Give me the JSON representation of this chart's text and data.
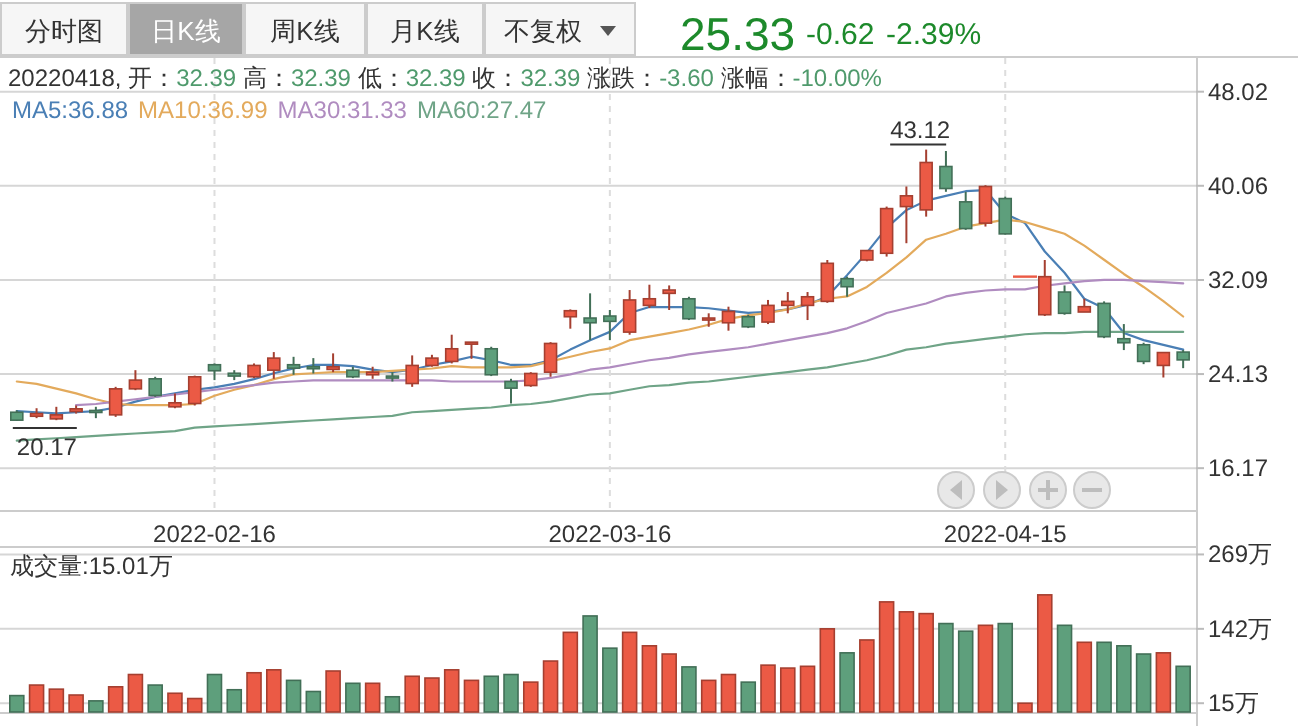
{
  "chart_data": [
    {
      "type": "candlestick",
      "categories": [
        null,
        null,
        null,
        null,
        null,
        null,
        null,
        null,
        null,
        null,
        "2022-02-16",
        null,
        null,
        null,
        null,
        null,
        null,
        null,
        null,
        null,
        null,
        null,
        null,
        null,
        null,
        null,
        null,
        null,
        null,
        null,
        "2022-03-16",
        null,
        null,
        null,
        null,
        null,
        null,
        null,
        null,
        null,
        null,
        null,
        null,
        null,
        null,
        null,
        null,
        null,
        null,
        null,
        "2022-04-15",
        null,
        null,
        null,
        null,
        null,
        null,
        null,
        null,
        null
      ],
      "ohlc": [
        [
          20.9,
          21.07,
          20.17,
          20.23
        ],
        [
          20.56,
          21.24,
          20.4,
          20.79
        ],
        [
          20.34,
          21.36,
          20.23,
          20.68
        ],
        [
          20.96,
          21.47,
          20.79,
          21.19
        ],
        [
          21.05,
          21.36,
          20.4,
          21.0
        ],
        [
          20.68,
          23.05,
          20.51,
          22.88
        ],
        [
          22.88,
          24.46,
          22.77,
          23.62
        ],
        [
          23.73,
          23.9,
          22.2,
          22.32
        ],
        [
          21.36,
          22.49,
          21.24,
          21.7
        ],
        [
          21.64,
          24.0,
          21.47,
          23.9
        ],
        [
          24.92,
          25.03,
          23.62,
          24.41
        ],
        [
          24.2,
          24.46,
          23.62,
          23.96
        ],
        [
          23.9,
          25.03,
          23.79,
          24.86
        ],
        [
          24.46,
          25.99,
          23.73,
          25.48
        ],
        [
          24.92,
          25.59,
          24.07,
          24.63
        ],
        [
          24.75,
          25.48,
          24.18,
          24.63
        ],
        [
          24.52,
          25.88,
          24.29,
          24.75
        ],
        [
          24.46,
          24.75,
          23.79,
          23.9
        ],
        [
          24.07,
          24.75,
          23.73,
          24.29
        ],
        [
          23.96,
          24.29,
          23.5,
          23.84
        ],
        [
          23.33,
          25.71,
          23.05,
          24.86
        ],
        [
          24.86,
          25.76,
          24.75,
          25.48
        ],
        [
          25.2,
          27.46,
          25.03,
          26.27
        ],
        [
          26.72,
          26.83,
          25.42,
          26.83
        ],
        [
          26.27,
          26.44,
          23.96,
          24.07
        ],
        [
          23.5,
          23.73,
          21.64,
          22.94
        ],
        [
          23.16,
          24.29,
          23.05,
          24.18
        ],
        [
          24.29,
          26.83,
          23.9,
          26.72
        ],
        [
          28.98,
          29.6,
          27.97,
          29.49
        ],
        [
          28.87,
          30.96,
          27.0,
          28.47
        ],
        [
          29.04,
          29.55,
          27.0,
          28.59
        ],
        [
          27.68,
          31.24,
          27.46,
          30.4
        ],
        [
          29.94,
          31.69,
          29.72,
          30.5
        ],
        [
          30.96,
          31.63,
          29.55,
          31.24
        ],
        [
          30.5,
          30.67,
          28.7,
          28.81
        ],
        [
          28.7,
          29.27,
          28.13,
          28.87
        ],
        [
          28.47,
          29.83,
          27.8,
          29.43
        ],
        [
          28.98,
          29.15,
          28.02,
          28.13
        ],
        [
          28.53,
          30.4,
          28.36,
          29.94
        ],
        [
          29.94,
          31.07,
          29.27,
          30.28
        ],
        [
          29.94,
          31.07,
          28.7,
          30.67
        ],
        [
          30.28,
          33.78,
          30.16,
          33.5
        ],
        [
          32.2,
          32.37,
          30.67,
          31.52
        ],
        [
          33.78,
          34.63,
          33.67,
          34.58
        ],
        [
          34.35,
          38.3,
          34.07,
          38.13
        ],
        [
          38.3,
          40.0,
          35.2,
          39.21
        ],
        [
          38.02,
          43.12,
          37.45,
          42.03
        ],
        [
          41.69,
          43.0,
          39.55,
          39.83
        ],
        [
          38.7,
          39.55,
          36.33,
          36.44
        ],
        [
          36.9,
          40.11,
          36.61,
          40.0
        ],
        [
          38.98,
          39.15,
          35.93,
          35.99
        ],
        [
          32.39,
          32.39,
          32.39,
          32.39
        ],
        [
          29.15,
          33.78,
          29.04,
          32.37
        ],
        [
          31.07,
          31.63,
          29.15,
          29.27
        ],
        [
          29.38,
          30.5,
          29.38,
          29.83
        ],
        [
          30.11,
          30.28,
          27.17,
          27.29
        ],
        [
          27.12,
          28.36,
          26.16,
          26.78
        ],
        [
          26.61,
          26.78,
          24.97,
          25.2
        ],
        [
          24.86,
          25.99,
          23.84,
          25.95
        ],
        [
          25.99,
          26.16,
          24.63,
          25.33
        ]
      ],
      "colors": [
        "#5e9f7c",
        "#eb5a45",
        "#eb5a45",
        "#eb5a45",
        "#5e9f7c",
        "#eb5a45",
        "#eb5a45",
        "#5e9f7c",
        "#eb5a45",
        "#eb5a45",
        "#5e9f7c",
        "#5e9f7c",
        "#eb5a45",
        "#eb5a45",
        "#5e9f7c",
        "#5e9f7c",
        "#eb5a45",
        "#5e9f7c",
        "#eb5a45",
        "#5e9f7c",
        "#eb5a45",
        "#eb5a45",
        "#eb5a45",
        "#eb5a45",
        "#5e9f7c",
        "#5e9f7c",
        "#eb5a45",
        "#eb5a45",
        "#eb5a45",
        "#5e9f7c",
        "#5e9f7c",
        "#eb5a45",
        "#eb5a45",
        "#eb5a45",
        "#5e9f7c",
        "#eb5a45",
        "#eb5a45",
        "#5e9f7c",
        "#eb5a45",
        "#eb5a45",
        "#eb5a45",
        "#eb5a45",
        "#5e9f7c",
        "#eb5a45",
        "#eb5a45",
        "#eb5a45",
        "#eb5a45",
        "#5e9f7c",
        "#5e9f7c",
        "#eb5a45",
        "#5e9f7c",
        "#eb5a45",
        "#eb5a45",
        "#5e9f7c",
        "#eb5a45",
        "#5e9f7c",
        "#5e9f7c",
        "#5e9f7c",
        "#eb5a45",
        "#5e9f7c"
      ],
      "series": [
        {
          "type": "line",
          "name": "MA5:36.88",
          "color": "#4a7fb5",
          "values": [
            21.0,
            20.9,
            20.8,
            20.9,
            21.0,
            21.3,
            21.8,
            22.2,
            22.5,
            22.8,
            23.0,
            23.3,
            23.7,
            24.2,
            24.6,
            24.9,
            24.9,
            24.8,
            24.5,
            24.3,
            24.5,
            24.9,
            25.2,
            25.6,
            25.3,
            24.9,
            24.9,
            25.3,
            26.2,
            27.0,
            27.7,
            29.3,
            29.8,
            29.8,
            29.8,
            29.7,
            29.5,
            29.3,
            29.4,
            29.6,
            30.0,
            30.7,
            32.5,
            34.4,
            36.5,
            38.0,
            38.8,
            39.2,
            39.6,
            39.7,
            37.7,
            36.9,
            34.5,
            32.7,
            30.5,
            29.7,
            27.6,
            27.0,
            26.6,
            26.2
          ]
        },
        {
          "type": "line",
          "name": "MA10:36.99",
          "color": "#e3aa5c",
          "values": [
            23.5,
            23.3,
            22.9,
            22.5,
            22.0,
            21.6,
            21.5,
            21.5,
            21.5,
            21.6,
            22.3,
            22.8,
            23.2,
            23.7,
            24.1,
            24.2,
            24.3,
            24.3,
            24.3,
            24.4,
            24.5,
            24.6,
            24.8,
            24.7,
            24.7,
            24.7,
            24.8,
            25.2,
            25.6,
            26.0,
            26.3,
            27.0,
            27.3,
            27.6,
            27.9,
            28.3,
            28.8,
            29.1,
            29.3,
            29.6,
            30.1,
            30.5,
            30.7,
            31.5,
            32.7,
            34.0,
            35.5,
            36.0,
            36.6,
            36.9,
            37.2,
            37.0,
            36.5,
            36.0,
            35.0,
            33.8,
            32.6,
            31.5,
            30.3,
            29.0
          ]
        },
        {
          "type": "line",
          "name": "MA30:31.33",
          "color": "#b08cc0",
          "values": [
            null,
            null,
            null,
            21.5,
            21.6,
            21.8,
            22.0,
            22.2,
            22.4,
            22.6,
            22.8,
            23.0,
            23.2,
            23.4,
            23.5,
            23.6,
            23.6,
            23.6,
            23.6,
            23.6,
            23.6,
            23.6,
            23.5,
            23.5,
            23.5,
            23.5,
            23.6,
            23.8,
            24.1,
            24.5,
            24.7,
            25.0,
            25.3,
            25.5,
            25.8,
            26.0,
            26.2,
            26.4,
            26.7,
            27.0,
            27.3,
            27.6,
            28.0,
            28.6,
            29.3,
            29.7,
            30.1,
            30.7,
            31.0,
            31.2,
            31.3,
            31.3,
            31.6,
            31.8,
            32.0,
            32.1,
            32.1,
            32.0,
            31.9,
            31.8
          ]
        },
        {
          "type": "line",
          "name": "MA60:27.47",
          "color": "#6fa487",
          "values": [
            18.5,
            18.6,
            18.7,
            18.8,
            18.9,
            19.0,
            19.1,
            19.2,
            19.3,
            19.6,
            19.7,
            19.8,
            19.9,
            20.0,
            20.1,
            20.2,
            20.3,
            20.4,
            20.5,
            20.6,
            20.9,
            21.0,
            21.1,
            21.2,
            21.3,
            21.5,
            21.6,
            21.8,
            22.1,
            22.4,
            22.5,
            22.8,
            23.1,
            23.2,
            23.4,
            23.5,
            23.7,
            23.9,
            24.1,
            24.3,
            24.5,
            24.7,
            25.0,
            25.3,
            25.7,
            26.2,
            26.4,
            26.7,
            26.9,
            27.1,
            27.3,
            27.5,
            27.6,
            27.6,
            27.7,
            27.7,
            27.7,
            27.7,
            27.7,
            27.7
          ]
        }
      ],
      "ylim": [
        12.63,
        50.87
      ],
      "yticks": [
        16.17,
        24.13,
        32.09,
        40.06,
        48.02
      ],
      "grid": true,
      "legend": "top left",
      "annotations": [
        "分时图",
        "日K线",
        "周K线",
        "月K线",
        "不复权",
        "25.33",
        "-0.62",
        "-2.39%",
        "20220418, 开：32.39 高：32.39 低：32.39 收：32.39 涨跌：-3.60 涨幅：-10.00%",
        {
          "text": "43.12",
          "y": 43.12
        },
        {
          "text": "20.17",
          "y": 20.17
        }
      ]
    },
    {
      "type": "bar",
      "title": "成交量:15.01万",
      "categories": [
        null,
        null,
        null,
        null,
        null,
        null,
        null,
        null,
        null,
        null,
        null,
        null,
        null,
        null,
        null,
        null,
        null,
        null,
        null,
        null,
        null,
        null,
        null,
        null,
        null,
        null,
        null,
        null,
        null,
        null,
        null,
        null,
        null,
        null,
        null,
        null,
        null,
        null,
        null,
        null,
        null,
        null,
        null,
        null,
        null,
        null,
        null,
        null,
        null,
        null,
        null,
        null,
        null,
        null,
        null,
        null,
        null,
        null,
        null,
        null
      ],
      "values": [
        28,
        46,
        39,
        29,
        19,
        43,
        64,
        46,
        32,
        23,
        64,
        38,
        67,
        72,
        54,
        35,
        70,
        49,
        49,
        26,
        61,
        58,
        72,
        54,
        61,
        64,
        51,
        87,
        136,
        164,
        109,
        136,
        113,
        99,
        77,
        54,
        64,
        51,
        80,
        75,
        78,
        142,
        101,
        123,
        188,
        171,
        168,
        151,
        138,
        148,
        151,
        15,
        200,
        148,
        119,
        119,
        113,
        99,
        101,
        78
      ],
      "colors": [
        "#5e9f7c",
        "#eb5a45",
        "#eb5a45",
        "#eb5a45",
        "#5e9f7c",
        "#eb5a45",
        "#eb5a45",
        "#5e9f7c",
        "#eb5a45",
        "#eb5a45",
        "#5e9f7c",
        "#5e9f7c",
        "#eb5a45",
        "#eb5a45",
        "#5e9f7c",
        "#5e9f7c",
        "#eb5a45",
        "#5e9f7c",
        "#eb5a45",
        "#5e9f7c",
        "#eb5a45",
        "#eb5a45",
        "#eb5a45",
        "#eb5a45",
        "#5e9f7c",
        "#5e9f7c",
        "#eb5a45",
        "#eb5a45",
        "#eb5a45",
        "#5e9f7c",
        "#5e9f7c",
        "#eb5a45",
        "#eb5a45",
        "#eb5a45",
        "#5e9f7c",
        "#eb5a45",
        "#eb5a45",
        "#5e9f7c",
        "#eb5a45",
        "#eb5a45",
        "#eb5a45",
        "#eb5a45",
        "#5e9f7c",
        "#eb5a45",
        "#eb5a45",
        "#eb5a45",
        "#eb5a45",
        "#5e9f7c",
        "#5e9f7c",
        "#eb5a45",
        "#5e9f7c",
        "#eb5a45",
        "#eb5a45",
        "#5e9f7c",
        "#eb5a45",
        "#5e9f7c",
        "#5e9f7c",
        "#5e9f7c",
        "#eb5a45",
        "#5e9f7c"
      ],
      "ylim": [
        0,
        280
      ],
      "yticks": [
        {
          "value": 15,
          "label": "15万"
        },
        {
          "value": 142,
          "label": "142万"
        },
        {
          "value": 269,
          "label": "269万"
        }
      ],
      "grid": "y",
      "tick_labels": "y"
    }
  ]
}
